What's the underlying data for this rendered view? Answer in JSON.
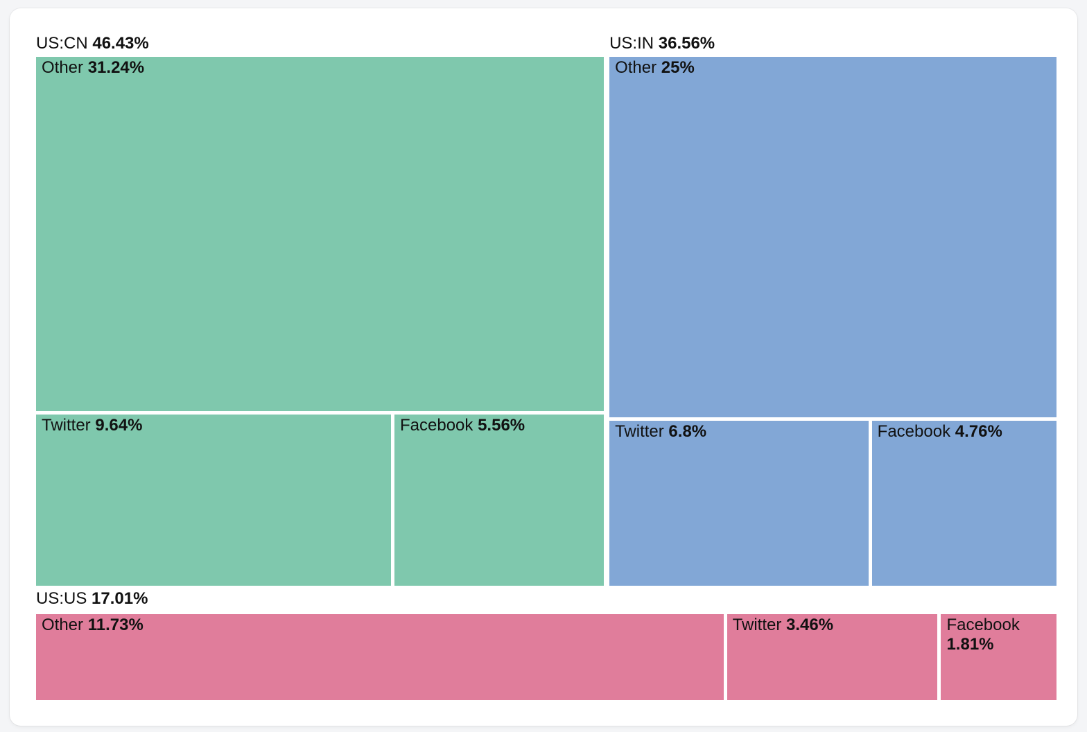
{
  "chart_data": {
    "type": "treemap",
    "title": "",
    "unit": "%",
    "layout": {
      "top_row_groups": [
        "US:CN",
        "US:IN"
      ],
      "bottom_row_groups": [
        "US:US"
      ],
      "group_label_position": "top-left-outside",
      "cell_label_position": "top-left-inside",
      "background": "#ffffff",
      "page_background": "#f4f5f7",
      "text_color": "#111111"
    },
    "groups": [
      {
        "name": "US:CN",
        "value": 46.43,
        "value_label": "46.43%",
        "color": "#7fc8ad",
        "row2_value": 15.2,
        "children": [
          {
            "name": "Other",
            "value": 31.24,
            "value_label": "31.24%"
          },
          {
            "name": "Twitter",
            "value": 9.64,
            "value_label": "9.64%"
          },
          {
            "name": "Facebook",
            "value": 5.56,
            "value_label": "5.56%"
          }
        ]
      },
      {
        "name": "US:IN",
        "value": 36.56,
        "value_label": "36.56%",
        "color": "#82a7d6",
        "row2_value": 11.56,
        "children": [
          {
            "name": "Other",
            "value": 25,
            "value_label": "25%"
          },
          {
            "name": "Twitter",
            "value": 6.8,
            "value_label": "6.8%"
          },
          {
            "name": "Facebook",
            "value": 4.76,
            "value_label": "4.76%"
          }
        ]
      },
      {
        "name": "US:US",
        "value": 17.01,
        "value_label": "17.01%",
        "color": "#e07d9b",
        "children": [
          {
            "name": "Other",
            "value": 11.73,
            "value_label": "11.73%"
          },
          {
            "name": "Twitter",
            "value": 3.46,
            "value_label": "3.46%"
          },
          {
            "name": "Facebook",
            "value": 1.81,
            "value_label": "1.81%"
          }
        ]
      }
    ]
  }
}
